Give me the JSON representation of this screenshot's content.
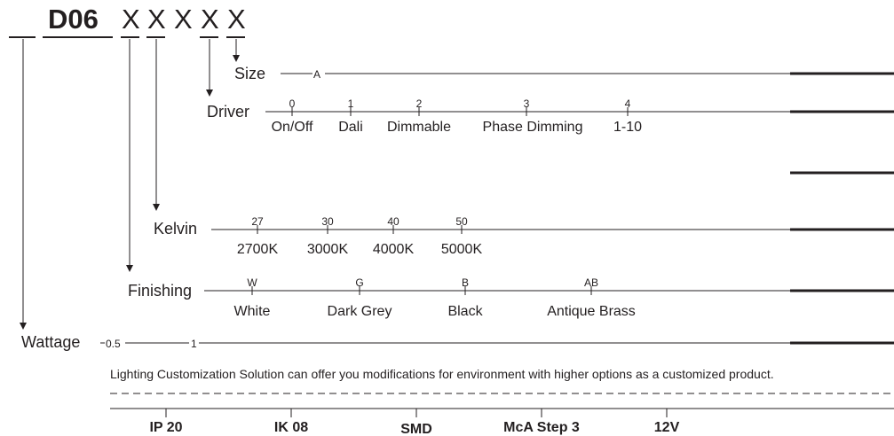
{
  "model": {
    "code": "D06",
    "placeholders": [
      "X",
      "X",
      "X",
      "X",
      "X"
    ]
  },
  "rows": {
    "size": {
      "label": "Size",
      "options": [
        {
          "code": "A"
        }
      ]
    },
    "driver": {
      "label": "Driver",
      "options": [
        {
          "code": "0",
          "name": "On/Off"
        },
        {
          "code": "1",
          "name": "Dali"
        },
        {
          "code": "2",
          "name": "Dimmable"
        },
        {
          "code": "3",
          "name": "Phase Dimming"
        },
        {
          "code": "4",
          "name": "1-10"
        }
      ]
    },
    "kelvin": {
      "label": "Kelvin",
      "options": [
        {
          "code": "27",
          "name": "2700K"
        },
        {
          "code": "30",
          "name": "3000K"
        },
        {
          "code": "40",
          "name": "4000K"
        },
        {
          "code": "50",
          "name": "5000K"
        }
      ]
    },
    "finishing": {
      "label": "Finishing",
      "options": [
        {
          "code": "W",
          "name": "White"
        },
        {
          "code": "G",
          "name": "Dark Grey"
        },
        {
          "code": "B",
          "name": "Black"
        },
        {
          "code": "AB",
          "name": "Antique Brass"
        }
      ]
    },
    "wattage": {
      "label": "Wattage",
      "options": [
        {
          "code": "0.5"
        },
        {
          "code": "1"
        }
      ]
    }
  },
  "footer": {
    "note": "Lighting Customization Solution can offer you modifications for environment with higher options as a customized product.",
    "specs": [
      "IP 20",
      "IK 08",
      "SMD",
      "McA Step 3",
      "12V"
    ]
  },
  "colors": {
    "ink": "#231f20",
    "background": "#ffffff"
  }
}
